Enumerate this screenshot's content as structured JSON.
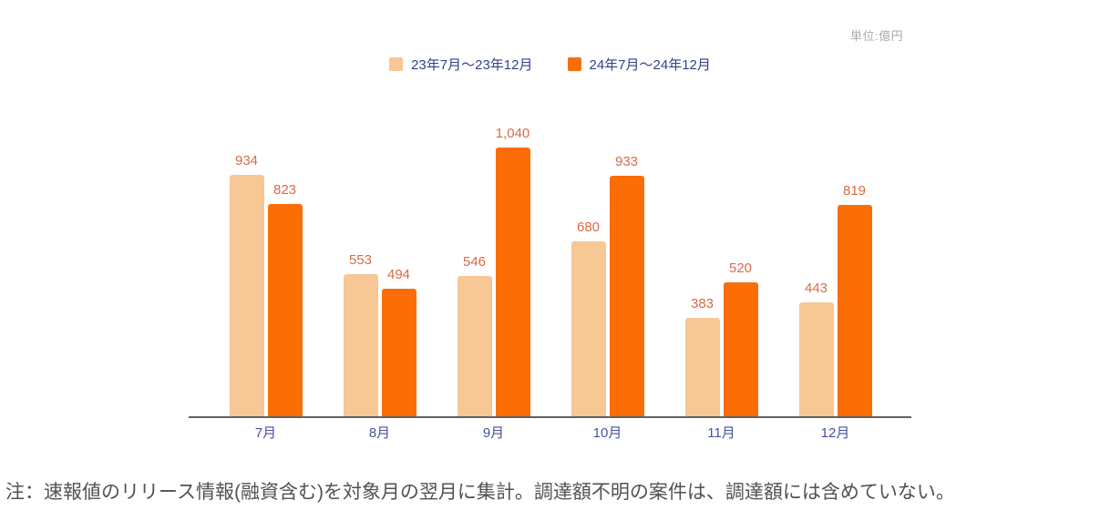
{
  "unit_label": "単位:億円",
  "legend": {
    "items": [
      {
        "label": "23年7月〜23年12月",
        "color": "#F7C795"
      },
      {
        "label": "24年7月〜24年12月",
        "color": "#FB6D05"
      }
    ]
  },
  "note": "注：速報値のリリース情報(融資含む)を対象月の翌月に集計。調達額不明の案件は、調達額には含めていない。",
  "colors": {
    "series1": "#F7C795",
    "series2": "#FB6D05",
    "value_label_text": "#D96B45",
    "axis_tick_text": "#47519E",
    "legend_text": "#343F8D",
    "axis_line": "#616161",
    "unit_text": "#A9A9A9",
    "note_text": "#525252"
  },
  "chart_data": {
    "type": "bar",
    "categories": [
      "7月",
      "8月",
      "9月",
      "10月",
      "11月",
      "12月"
    ],
    "series": [
      {
        "name": "23年7月〜23年12月",
        "color": "#F7C795",
        "values": [
          934,
          553,
          546,
          680,
          383,
          443
        ]
      },
      {
        "name": "24年7月〜24年12月",
        "color": "#FB6D05",
        "values": [
          823,
          494,
          1040,
          933,
          520,
          819
        ]
      }
    ],
    "title": "",
    "xlabel": "",
    "ylabel": "単位:億円",
    "ylim": [
      0,
      1100
    ],
    "grid": false,
    "legend_position": "top-center",
    "value_labels": true
  }
}
